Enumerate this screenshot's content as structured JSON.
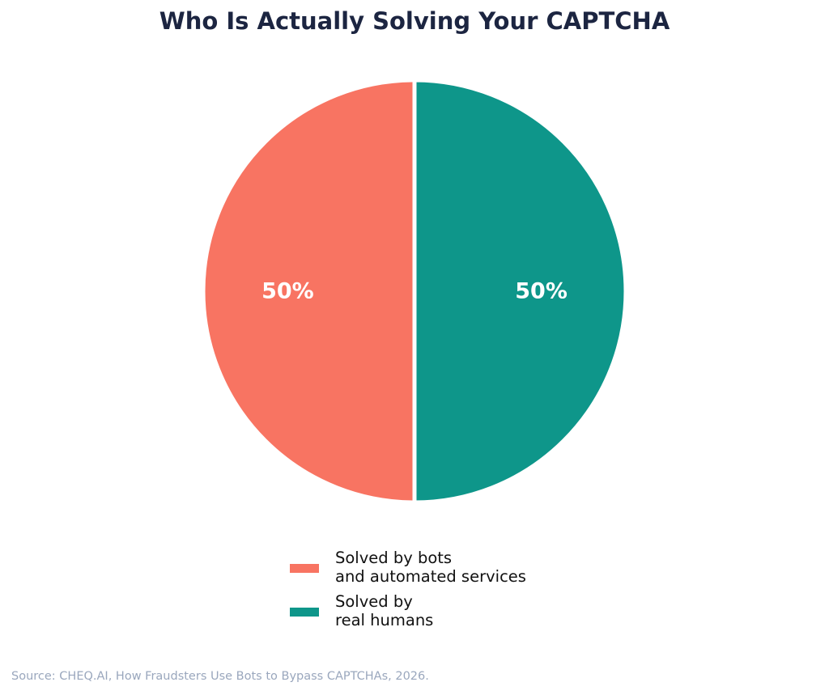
{
  "chart_data": {
    "type": "pie",
    "title": "Who Is Actually Solving Your CAPTCHA",
    "slices": [
      {
        "label_lines": [
          "Solved by bots",
          "and automated services"
        ],
        "value": 50,
        "display": "50%",
        "color": "#f87462"
      },
      {
        "label_lines": [
          "Solved by",
          "real humans"
        ],
        "value": 50,
        "display": "50%",
        "color": "#0e968a"
      }
    ],
    "start_angle_deg": 90,
    "direction": "counterclockwise",
    "legend_position": "bottom-center"
  },
  "source": "Source: CHEQ.AI, How Fraudsters Use Bots to Bypass CAPTCHAs, 2026."
}
